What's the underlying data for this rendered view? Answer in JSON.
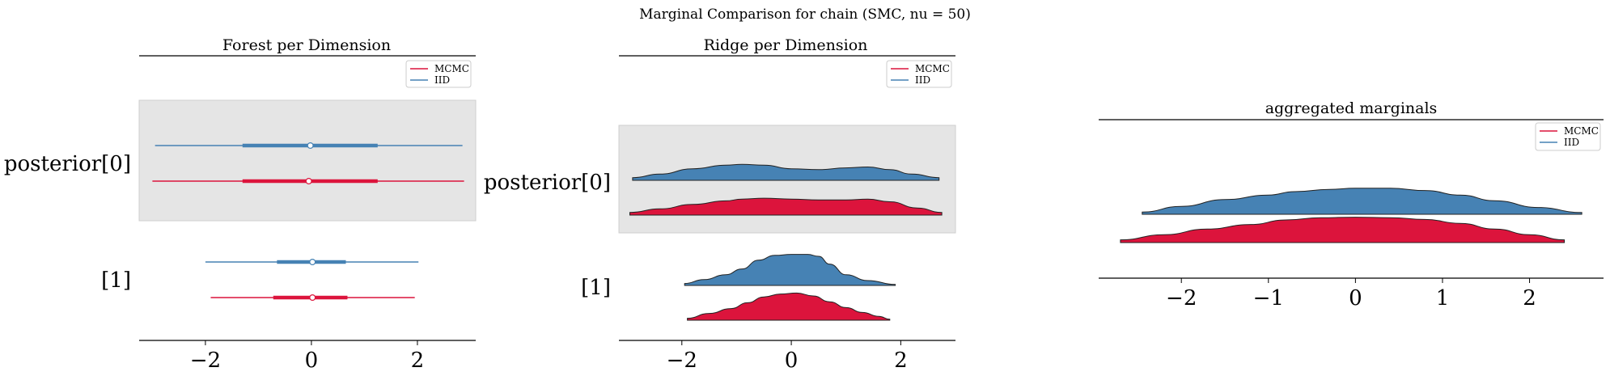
{
  "figure": {
    "suptitle": "Marginal Comparison for chain (SMC, nu = 50)"
  },
  "colors": {
    "mcmc": "#dc143c",
    "iid": "#4682b4",
    "band": "#e5e5e5"
  },
  "chart_data": [
    {
      "type": "forest",
      "title": "Forest per Dimension",
      "xticks": [
        -2,
        0,
        2
      ],
      "xlim": [
        -3.25,
        3.1
      ],
      "rows": [
        "posterior[0]",
        "[1]"
      ],
      "legend": [
        "MCMC",
        "IID"
      ],
      "legend_position": "top-right",
      "series": [
        {
          "name": "IID",
          "rows": [
            {
              "low": -2.95,
              "q1": -1.3,
              "median": -0.02,
              "q3": 1.25,
              "high": 2.85
            },
            {
              "low": -2.0,
              "q1": -0.65,
              "median": 0.02,
              "q3": 0.65,
              "high": 2.02
            }
          ]
        },
        {
          "name": "MCMC",
          "rows": [
            {
              "low": -3.0,
              "q1": -1.3,
              "median": -0.05,
              "q3": 1.25,
              "high": 2.88
            },
            {
              "low": -1.9,
              "q1": -0.72,
              "median": 0.02,
              "q3": 0.68,
              "high": 1.95
            }
          ]
        }
      ]
    },
    {
      "type": "ridge",
      "title": "Ridge per Dimension",
      "xticks": [
        -2,
        0,
        2
      ],
      "xlim": [
        -3.15,
        3.0
      ],
      "rows": [
        "posterior[0]",
        "[1]"
      ],
      "legend": [
        "MCMC",
        "IID"
      ],
      "legend_position": "top-right",
      "series": [
        {
          "name": "IID",
          "rows": [
            {
              "x": [
                -2.9,
                -2.4,
                -1.8,
                -1.2,
                -0.9,
                -0.5,
                0.0,
                0.5,
                1.0,
                1.4,
                1.8,
                2.2,
                2.7
              ],
              "density": [
                0.15,
                0.35,
                0.65,
                0.85,
                0.9,
                0.85,
                0.65,
                0.6,
                0.7,
                0.75,
                0.6,
                0.35,
                0.15
              ]
            },
            {
              "x": [
                -1.95,
                -1.6,
                -1.2,
                -0.9,
                -0.6,
                -0.3,
                0.0,
                0.3,
                0.5,
                0.7,
                1.0,
                1.4,
                1.9
              ],
              "density": [
                0.1,
                0.3,
                0.55,
                0.85,
                1.3,
                1.55,
                1.6,
                1.6,
                1.5,
                1.1,
                0.55,
                0.25,
                0.05
              ]
            }
          ]
        },
        {
          "name": "MCMC",
          "rows": [
            {
              "x": [
                -2.95,
                -2.4,
                -1.8,
                -1.2,
                -0.9,
                -0.5,
                0.0,
                0.5,
                1.0,
                1.4,
                1.8,
                2.3,
                2.75
              ],
              "density": [
                0.15,
                0.35,
                0.6,
                0.8,
                0.9,
                0.95,
                0.9,
                0.85,
                0.85,
                0.9,
                0.75,
                0.4,
                0.15
              ]
            },
            {
              "x": [
                -1.9,
                -1.5,
                -1.1,
                -0.8,
                -0.5,
                -0.2,
                0.1,
                0.4,
                0.7,
                1.0,
                1.3,
                1.6,
                1.8
              ],
              "density": [
                0.1,
                0.35,
                0.6,
                0.9,
                1.2,
                1.35,
                1.4,
                1.25,
                0.95,
                0.65,
                0.4,
                0.2,
                0.05
              ]
            }
          ]
        }
      ]
    },
    {
      "type": "ridge",
      "title": "aggregated marginals",
      "xticks": [
        -2,
        -1,
        0,
        1,
        2
      ],
      "xlim": [
        -2.95,
        2.85
      ],
      "rows": [],
      "legend": [
        "MCMC",
        "IID"
      ],
      "legend_position": "top-right",
      "series": [
        {
          "name": "IID",
          "rows": [
            {
              "x": [
                -2.45,
                -2.0,
                -1.5,
                -1.0,
                -0.7,
                -0.3,
                0.0,
                0.4,
                0.8,
                1.2,
                1.6,
                2.1,
                2.6
              ],
              "density": [
                0.1,
                0.35,
                0.65,
                0.85,
                1.0,
                1.1,
                1.15,
                1.15,
                1.05,
                0.85,
                0.6,
                0.3,
                0.08
              ]
            }
          ]
        },
        {
          "name": "MCMC",
          "rows": [
            {
              "x": [
                -2.7,
                -2.2,
                -1.7,
                -1.2,
                -0.8,
                -0.4,
                0.0,
                0.4,
                0.8,
                1.2,
                1.6,
                2.0,
                2.4
              ],
              "density": [
                0.12,
                0.35,
                0.6,
                0.8,
                1.0,
                1.1,
                1.12,
                1.1,
                1.02,
                0.85,
                0.6,
                0.35,
                0.12
              ]
            }
          ]
        }
      ]
    }
  ]
}
